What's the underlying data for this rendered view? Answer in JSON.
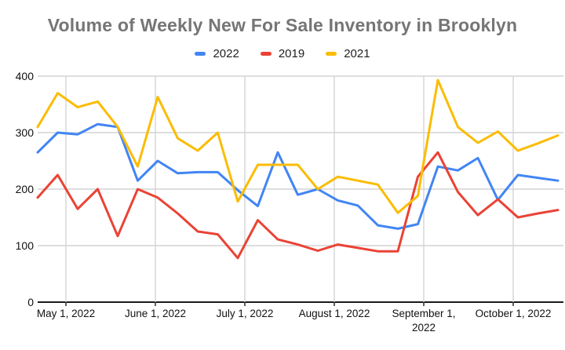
{
  "title": "Volume of Weekly New For Sale Inventory in Brooklyn",
  "chart_data": {
    "type": "line",
    "title": "Volume of Weekly New For Sale Inventory in Brooklyn",
    "x_unit": "weekly points, late April through late October 2022",
    "n_points": 27,
    "x_axis": {
      "tick_labels": [
        "May 1, 2022",
        "June 1, 2022",
        "July 1, 2022",
        "August 1, 2022",
        "September 1,\n2022",
        "October 1, 2022"
      ]
    },
    "y_axis": {
      "tick_labels": [
        "400",
        "300",
        "200",
        "100",
        "0"
      ],
      "tick_values": [
        400,
        300,
        200,
        100,
        0
      ],
      "min": 0,
      "max": 400
    },
    "grid": true,
    "legend_position": "top",
    "series": [
      {
        "name": "2022",
        "color": "#4285F4",
        "values": [
          265,
          300,
          297,
          315,
          310,
          215,
          250,
          228,
          230,
          230,
          198,
          170,
          265,
          190,
          200,
          180,
          171,
          136,
          130,
          138,
          240,
          233,
          255,
          181,
          225,
          220,
          215
        ]
      },
      {
        "name": "2019",
        "color": "#EA4335",
        "values": [
          185,
          225,
          165,
          200,
          117,
          200,
          185,
          157,
          125,
          120,
          78,
          145,
          111,
          102,
          91,
          102,
          96,
          90,
          90,
          222,
          265,
          195,
          154,
          182,
          150,
          157,
          163
        ]
      },
      {
        "name": "2021",
        "color": "#FBBC04",
        "values": [
          310,
          370,
          345,
          355,
          310,
          240,
          363,
          290,
          268,
          300,
          178,
          243,
          243,
          243,
          200,
          222,
          215,
          208,
          158,
          188,
          393,
          310,
          282,
          302,
          268,
          281,
          295
        ]
      }
    ]
  }
}
